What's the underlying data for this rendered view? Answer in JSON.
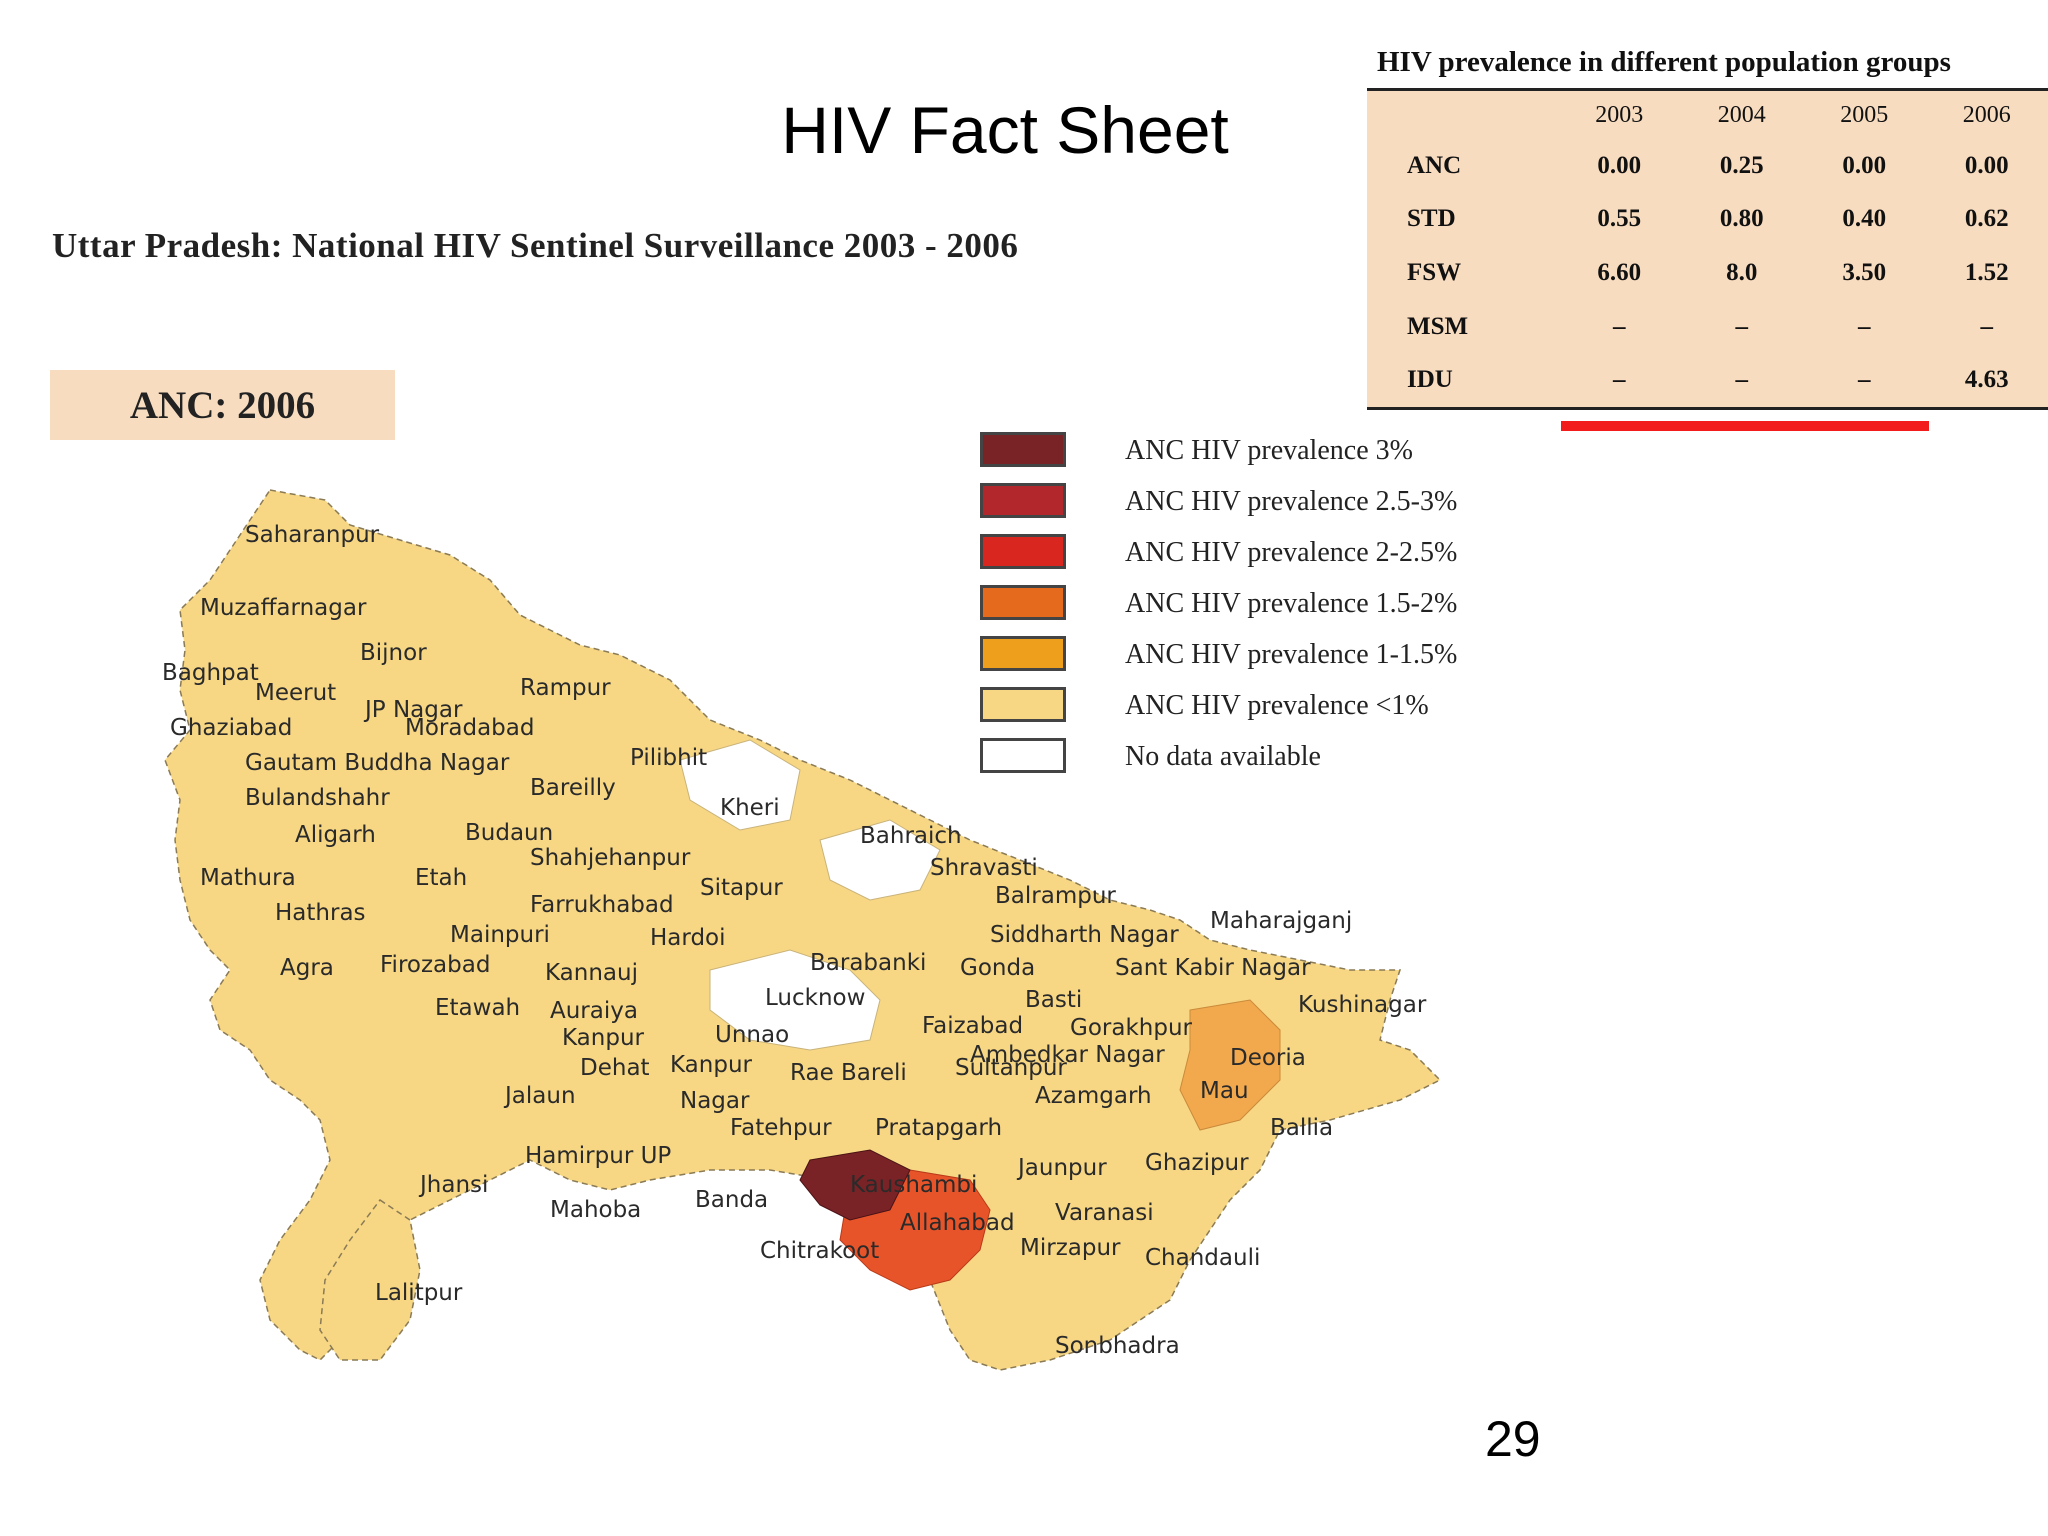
{
  "slide": {
    "title": "HIV Fact Sheet",
    "subtitle": "Uttar Pradesh: National HIV Sentinel Surveillance 2003 - 2006",
    "map_label": "ANC: 2006",
    "page_number": "29"
  },
  "table": {
    "caption": "HIV prevalence in  different population groups",
    "years": [
      "2003",
      "2004",
      "2005",
      "2006"
    ],
    "rows": [
      {
        "group": "ANC",
        "values": [
          "0.00",
          "0.25",
          "0.00",
          "0.00"
        ]
      },
      {
        "group": "STD",
        "values": [
          "0.55",
          "0.80",
          "0.40",
          "0.62"
        ]
      },
      {
        "group": "FSW",
        "values": [
          "6.60",
          "8.0",
          "3.50",
          "1.52"
        ]
      },
      {
        "group": "MSM",
        "values": [
          "–",
          "–",
          "–",
          "–"
        ]
      },
      {
        "group": "IDU",
        "values": [
          "–",
          "–",
          "–",
          "4.63"
        ]
      }
    ]
  },
  "legend": [
    {
      "label": "ANC HIV prevalence  3%",
      "color": "#7a2326"
    },
    {
      "label": "ANC HIV prevalence 2.5-3%",
      "color": "#b2272b"
    },
    {
      "label": "ANC HIV prevalence 2-2.5%",
      "color": "#d9271f"
    },
    {
      "label": "ANC HIV prevalence 1.5-2%",
      "color": "#e56a1e"
    },
    {
      "label": "ANC HIV prevalence 1-1.5%",
      "color": "#ee9f1c"
    },
    {
      "label": "ANC HIV prevalence <1%",
      "color": "#f7d784"
    },
    {
      "label": "No data available",
      "color": "#ffffff"
    }
  ],
  "map": {
    "colors": {
      "base": "#f7d784",
      "kaushambi": "#7a2326",
      "allahabad": "#e8542a",
      "mau_deoria": "#f2a94e",
      "no_data": "#ffffff"
    },
    "districts": [
      "Saharanpur",
      "Muzaffarnagar",
      "Bijnor",
      "Baghpat",
      "Meerut",
      "JP Nagar",
      "Rampur",
      "Ghaziabad",
      "Moradabad",
      "Gautam Buddha Nagar",
      "Pilibhit",
      "Bareilly",
      "Bulandshahr",
      "Kheri",
      "Aligarh",
      "Budaun",
      "Bahraich",
      "Shahjehanpur",
      "Shravasti",
      "Mathura",
      "Etah",
      "Sitapur",
      "Balrampur",
      "Farrukhabad",
      "Hathras",
      "Maharajganj",
      "Mainpuri",
      "Hardoi",
      "Siddharth Nagar",
      "Agra",
      "Firozabad",
      "Kannauj",
      "Barabanki",
      "Gonda",
      "Sant Kabir Nagar",
      "Lucknow",
      "Etawah",
      "Basti",
      "Auraiya",
      "Kushinagar",
      "Faizabad",
      "Gorakhpur",
      "Unnao",
      "Kanpur",
      "Ambedkar Nagar",
      "Deoria",
      "Dehat",
      "Kanpur",
      "Rae Bareli",
      "Sultanpur",
      "Mau",
      "Jalaun",
      "Nagar",
      "Azamgarh",
      "Fatehpur",
      "Pratapgarh",
      "Ballia",
      "Hamirpur UP",
      "Jaunpur",
      "Ghazipur",
      "Jhansi",
      "Kaushambi",
      "Mahoba",
      "Banda",
      "Varanasi",
      "Allahabad",
      "Mirzapur",
      "Chitrakoot",
      "Chandauli",
      "Lalitpur",
      "Sonbhadra"
    ]
  }
}
